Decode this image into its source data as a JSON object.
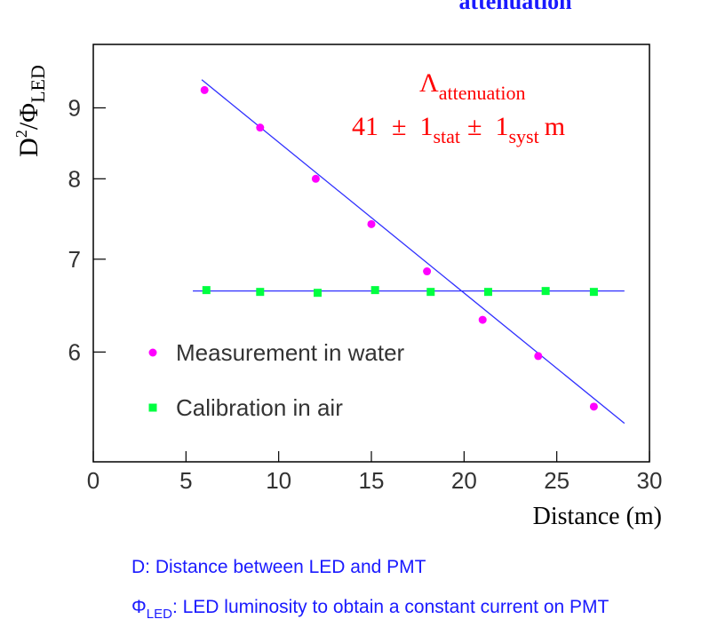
{
  "chart_data": {
    "type": "scatter",
    "title": "attenuation",
    "ylabel": {
      "base": "D",
      "sup": "2",
      "mid": "/Φ",
      "sub": "LED"
    },
    "xlabel": "Distance (m)",
    "xlim": [
      0,
      30
    ],
    "xticks": [
      0,
      5,
      10,
      15,
      20,
      25,
      30
    ],
    "ylim": [
      5,
      10
    ],
    "yticks": [
      6,
      7,
      8,
      9
    ],
    "log_y": true,
    "series": [
      {
        "name": "Measurement in water",
        "color": "#ff00ff",
        "marker": "circle",
        "x": [
          6,
          9,
          12,
          15,
          18,
          21,
          24,
          27
        ],
        "values": [
          9.27,
          8.71,
          8.0,
          7.42,
          6.86,
          6.33,
          5.96,
          5.48
        ]
      },
      {
        "name": "Calibration in air",
        "color": "#00ff40",
        "marker": "square",
        "x": [
          6.1,
          9,
          12.1,
          15.2,
          18.2,
          21.3,
          24.4,
          27
        ],
        "values": [
          6.65,
          6.63,
          6.62,
          6.65,
          6.63,
          6.63,
          6.64,
          6.63
        ]
      }
    ],
    "fit_lines": [
      {
        "color": "#3030ff",
        "x": [
          5.85,
          28.65
        ],
        "values": [
          9.43,
          5.33
        ]
      },
      {
        "color": "#3030ff",
        "x": [
          5.37,
          28.65
        ],
        "values": [
          6.64,
          6.64
        ]
      }
    ],
    "annotation": {
      "symbol": "Λ",
      "symbol_sub": "attenuation",
      "value": "41  ±  1",
      "stat": "stat",
      "syst_part": "±  1",
      "syst": "syst",
      "unit": "m"
    }
  },
  "footnotes": {
    "line1": "D: Distance between LED and PMT",
    "phi": "Φ",
    "phi_sub": "LED",
    "line2_rest": ": LED luminosity to obtain a constant current on PMT"
  }
}
